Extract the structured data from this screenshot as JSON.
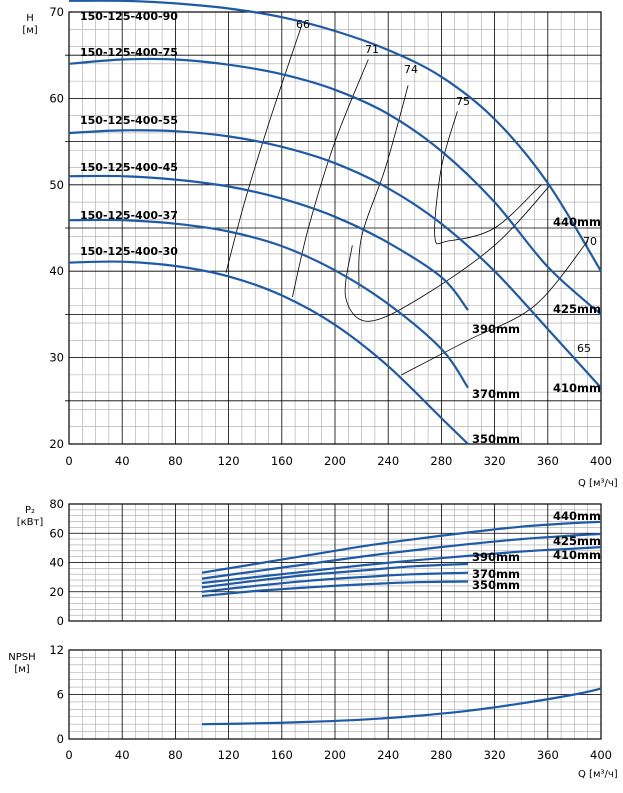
{
  "colors": {
    "curve": "#1f5aa6",
    "iso": "#000000",
    "grid_major": "#000000",
    "grid_minor": "#a8a8a8"
  },
  "chart_data": [
    {
      "type": "line",
      "id": "head",
      "ylabel": "H\n[м]",
      "xlabel": "",
      "xlim": [
        0,
        400
      ],
      "ylim": [
        20,
        70
      ],
      "x_ticks": [
        "0",
        "40",
        "80",
        "120",
        "160",
        "200",
        "240",
        "280",
        "320",
        "360",
        "400"
      ],
      "y_ticks": [
        "20",
        "30",
        "40",
        "50",
        "60",
        "70"
      ],
      "grid": true,
      "series": [
        {
          "name": "440mm",
          "points": [
            [
              0,
              71.3
            ],
            [
              40,
              71.3
            ],
            [
              80,
              71.0
            ],
            [
              120,
              70.4
            ],
            [
              160,
              69.4
            ],
            [
              200,
              67.8
            ],
            [
              240,
              65.6
            ],
            [
              280,
              62.5
            ],
            [
              320,
              57.6
            ],
            [
              360,
              50.2
            ],
            [
              400,
              40.0
            ]
          ]
        },
        {
          "name": "425mm",
          "points": [
            [
              0,
              64.0
            ],
            [
              40,
              64.5
            ],
            [
              80,
              64.5
            ],
            [
              120,
              63.9
            ],
            [
              160,
              62.8
            ],
            [
              200,
              61.0
            ],
            [
              240,
              58.2
            ],
            [
              280,
              53.9
            ],
            [
              320,
              48.0
            ],
            [
              360,
              40.5
            ],
            [
              400,
              35.0
            ]
          ]
        },
        {
          "name": "410mm",
          "points": [
            [
              0,
              56.0
            ],
            [
              40,
              56.3
            ],
            [
              80,
              56.2
            ],
            [
              120,
              55.6
            ],
            [
              160,
              54.4
            ],
            [
              200,
              52.5
            ],
            [
              240,
              49.6
            ],
            [
              280,
              45.5
            ],
            [
              320,
              40.0
            ],
            [
              360,
              33.3
            ],
            [
              400,
              26.5
            ]
          ]
        },
        {
          "name": "390mm",
          "points": [
            [
              0,
              51.0
            ],
            [
              40,
              51.0
            ],
            [
              80,
              50.6
            ],
            [
              120,
              49.8
            ],
            [
              160,
              48.4
            ],
            [
              200,
              46.3
            ],
            [
              240,
              43.3
            ],
            [
              280,
              39.3
            ],
            [
              300,
              35.5
            ]
          ]
        },
        {
          "name": "370mm",
          "points": [
            [
              0,
              45.9
            ],
            [
              40,
              45.9
            ],
            [
              80,
              45.5
            ],
            [
              120,
              44.6
            ],
            [
              160,
              42.9
            ],
            [
              200,
              40.1
            ],
            [
              240,
              36.2
            ],
            [
              280,
              31.0
            ],
            [
              300,
              26.5
            ]
          ]
        },
        {
          "name": "350mm",
          "points": [
            [
              0,
              41.0
            ],
            [
              40,
              41.1
            ],
            [
              80,
              40.6
            ],
            [
              120,
              39.4
            ],
            [
              160,
              37.2
            ],
            [
              200,
              33.8
            ],
            [
              240,
              29.0
            ],
            [
              280,
              23.0
            ],
            [
              300,
              20.0
            ]
          ]
        }
      ],
      "model_labels": [
        "150-125-400-90",
        "150-125-400-75",
        "150-125-400-55",
        "150-125-400-45",
        "150-125-400-37",
        "150-125-400-30"
      ],
      "diameter_labels": [
        "440mm",
        "425mm",
        "410mm",
        "390mm",
        "370mm",
        "350mm"
      ],
      "efficiency_labels": [
        "66",
        "71",
        "74",
        "75",
        "70",
        "65"
      ],
      "efficiency_lines": [
        {
          "label": "66",
          "points": [
            [
              175,
              68.5
            ],
            [
              150,
              57
            ],
            [
              132,
              48
            ],
            [
              118,
              39.8
            ]
          ]
        },
        {
          "label": "71",
          "points": [
            [
              225,
              64.5
            ],
            [
              200,
              55
            ],
            [
              180,
              45
            ],
            [
              168,
              37
            ]
          ]
        },
        {
          "label": "74",
          "points": [
            [
              255,
              61.5
            ],
            [
              238,
              52
            ],
            [
              220,
              44
            ],
            [
              218,
              38
            ]
          ]
        },
        {
          "label": "75",
          "points": [
            [
              292,
              58.5
            ],
            [
              280,
              52
            ],
            [
              275,
              44
            ],
            [
              285,
              43.5
            ],
            [
              320,
              45
            ],
            [
              355,
              50
            ]
          ]
        },
        {
          "label": "70",
          "points": [
            [
              213,
              43
            ],
            [
              208,
              37
            ],
            [
              225,
              34.2
            ],
            [
              265,
              37
            ],
            [
              320,
              43
            ],
            [
              362,
              50
            ]
          ]
        },
        {
          "label": "65",
          "points": [
            [
              250,
              28
            ],
            [
              300,
              32
            ],
            [
              350,
              36
            ],
            [
              390,
              43.5
            ]
          ]
        }
      ]
    },
    {
      "type": "line",
      "id": "power",
      "ylabel": "P₂\n[кВт]",
      "xlim": [
        0,
        400
      ],
      "ylim": [
        0,
        80
      ],
      "y_ticks": [
        "0",
        "20",
        "40",
        "60",
        "80"
      ],
      "grid": true,
      "series": [
        {
          "name": "440mm",
          "points": [
            [
              100,
              33
            ],
            [
              140,
              39
            ],
            [
              180,
              45
            ],
            [
              220,
              51
            ],
            [
              260,
              56
            ],
            [
              300,
              60.5
            ],
            [
              340,
              64.5
            ],
            [
              380,
              67
            ],
            [
              400,
              67.8
            ]
          ]
        },
        {
          "name": "425mm",
          "points": [
            [
              100,
              29
            ],
            [
              140,
              34
            ],
            [
              180,
              39
            ],
            [
              220,
              44
            ],
            [
              260,
              48.5
            ],
            [
              300,
              52.5
            ],
            [
              340,
              56
            ],
            [
              380,
              58.5
            ],
            [
              400,
              59.5
            ]
          ]
        },
        {
          "name": "410mm",
          "points": [
            [
              100,
              26
            ],
            [
              140,
              30
            ],
            [
              180,
              34
            ],
            [
              220,
              38
            ],
            [
              260,
              41.5
            ],
            [
              300,
              44.5
            ],
            [
              340,
              47.5
            ],
            [
              380,
              49.5
            ],
            [
              400,
              50.5
            ]
          ]
        },
        {
          "name": "390mm",
          "points": [
            [
              100,
              23
            ],
            [
              140,
              27.5
            ],
            [
              180,
              31.5
            ],
            [
              220,
              34.5
            ],
            [
              260,
              37.5
            ],
            [
              300,
              39
            ]
          ]
        },
        {
          "name": "370mm",
          "points": [
            [
              100,
              20
            ],
            [
              140,
              24
            ],
            [
              180,
              27.5
            ],
            [
              220,
              30
            ],
            [
              260,
              32
            ],
            [
              300,
              33
            ]
          ]
        },
        {
          "name": "350mm",
          "points": [
            [
              100,
              17
            ],
            [
              140,
              20.5
            ],
            [
              180,
              23
            ],
            [
              220,
              25
            ],
            [
              260,
              26.5
            ],
            [
              300,
              27
            ]
          ]
        }
      ],
      "diameter_labels": [
        "440mm",
        "425mm",
        "410mm",
        "390mm",
        "370mm",
        "350mm"
      ]
    },
    {
      "type": "line",
      "id": "npsh",
      "ylabel": "NPSH\n[м]",
      "xlabel": "Q [м³/ч]",
      "xlim": [
        0,
        400
      ],
      "ylim": [
        0,
        12
      ],
      "x_ticks": [
        "0",
        "40",
        "80",
        "120",
        "160",
        "200",
        "240",
        "280",
        "320",
        "360",
        "400"
      ],
      "y_ticks": [
        "0",
        "6",
        "12"
      ],
      "grid": true,
      "series": [
        {
          "name": "",
          "points": [
            [
              100,
              2.0
            ],
            [
              140,
              2.1
            ],
            [
              180,
              2.3
            ],
            [
              220,
              2.6
            ],
            [
              260,
              3.1
            ],
            [
              300,
              3.8
            ],
            [
              340,
              4.8
            ],
            [
              380,
              6.0
            ],
            [
              400,
              6.8
            ]
          ]
        }
      ]
    }
  ],
  "top_xlabel": "Q [м³/ч]"
}
